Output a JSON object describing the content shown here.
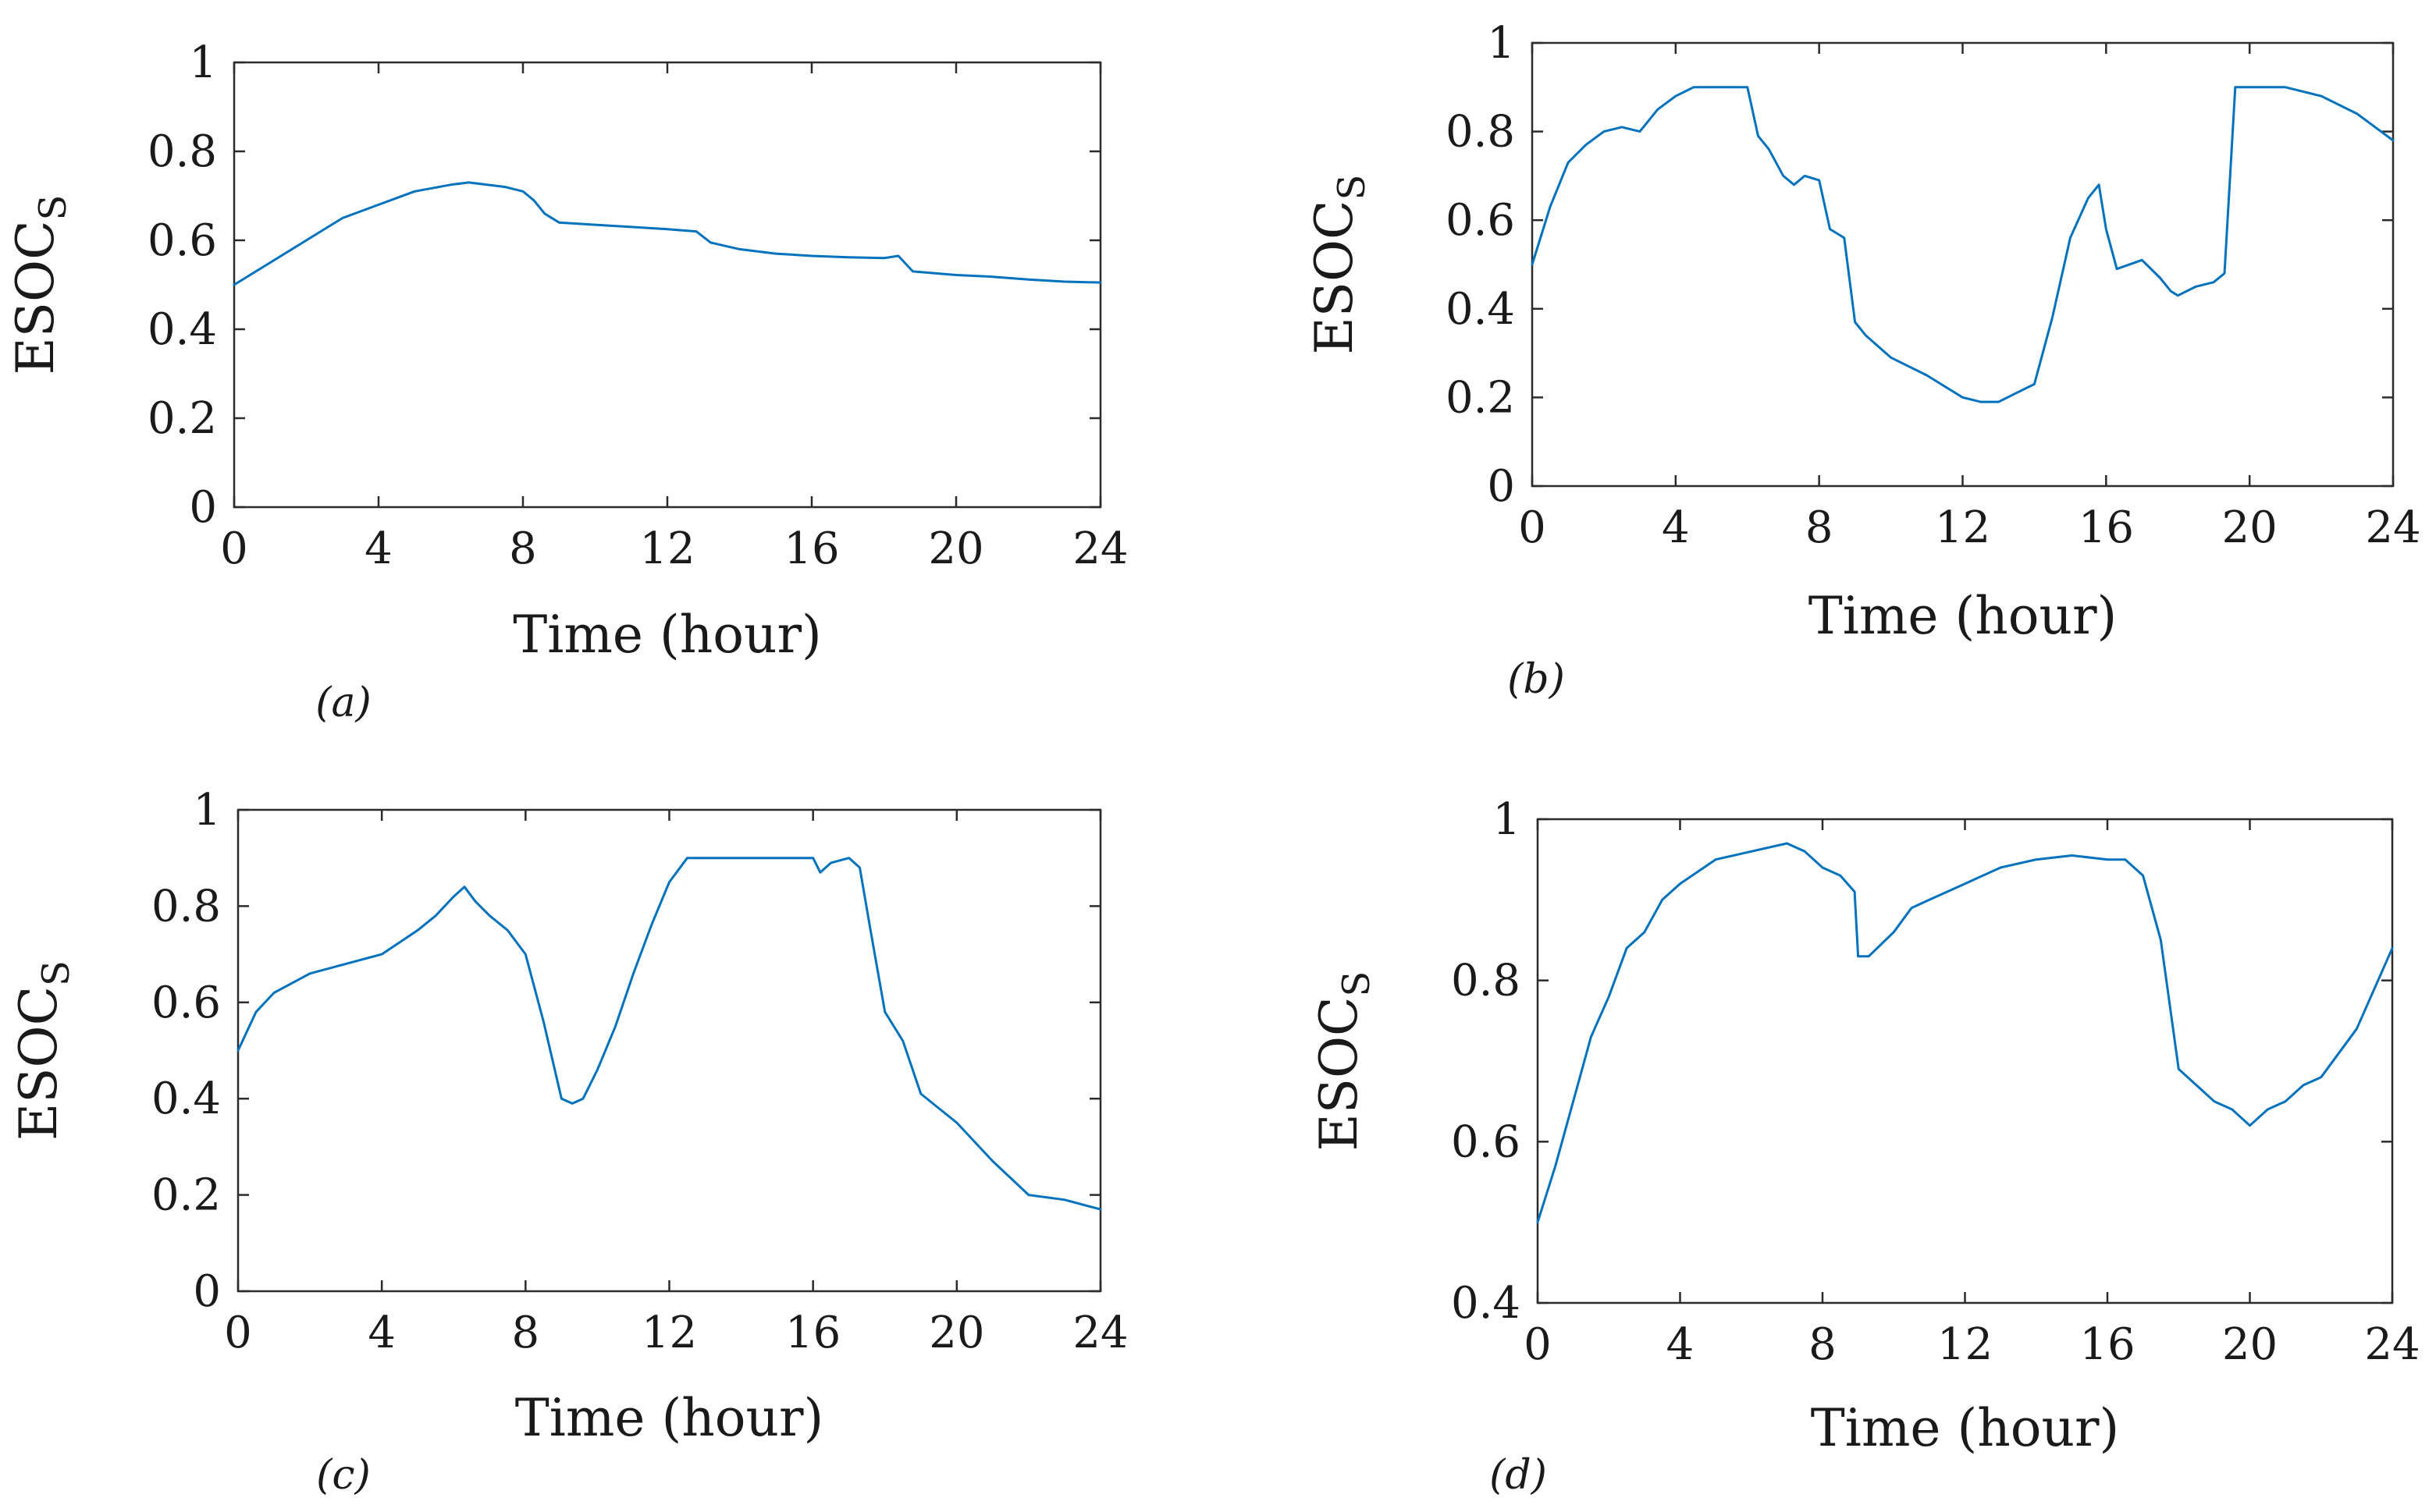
{
  "colors": {
    "series": "#0072bd",
    "axis": "#2b2b2b"
  },
  "chart_data": [
    {
      "type": "line",
      "panel_label": "(a)",
      "xlabel": "Time (hour)",
      "ylabel": "ESOC",
      "ylabel_subscript": "S",
      "xlim": [
        0,
        24
      ],
      "ylim": [
        0,
        1
      ],
      "xticks": [
        0,
        4,
        8,
        12,
        16,
        20,
        24
      ],
      "yticks": [
        0,
        0.2,
        0.4,
        0.6,
        0.8,
        1
      ],
      "xtick_labels": [
        "0",
        "4",
        "8",
        "12",
        "16",
        "20",
        "24"
      ],
      "ytick_labels": [
        "0",
        "0.2",
        "0.4",
        "0.6",
        "0.8",
        "1"
      ],
      "series": [
        {
          "name": "ESOC_S",
          "x": [
            0,
            1,
            2,
            3,
            4,
            5,
            6,
            6.5,
            7,
            7.5,
            8,
            8.3,
            8.6,
            9,
            10,
            11,
            12,
            12.8,
            13.2,
            14,
            15,
            16,
            17,
            18,
            18.4,
            18.8,
            20,
            21,
            22,
            23,
            24
          ],
          "y": [
            0.5,
            0.55,
            0.6,
            0.65,
            0.68,
            0.71,
            0.725,
            0.73,
            0.725,
            0.72,
            0.71,
            0.69,
            0.66,
            0.64,
            0.635,
            0.63,
            0.625,
            0.62,
            0.595,
            0.58,
            0.57,
            0.565,
            0.562,
            0.56,
            0.565,
            0.53,
            0.522,
            0.518,
            0.512,
            0.507,
            0.505
          ]
        }
      ]
    },
    {
      "type": "line",
      "panel_label": "(b)",
      "xlabel": "Time (hour)",
      "ylabel": "ESOC",
      "ylabel_subscript": "S",
      "xlim": [
        0,
        24
      ],
      "ylim": [
        0,
        1
      ],
      "xticks": [
        0,
        4,
        8,
        12,
        16,
        20,
        24
      ],
      "yticks": [
        0,
        0.2,
        0.4,
        0.6,
        0.8,
        1
      ],
      "xtick_labels": [
        "0",
        "4",
        "8",
        "12",
        "16",
        "20",
        "24"
      ],
      "ytick_labels": [
        "0",
        "0.2",
        "0.4",
        "0.6",
        "0.8",
        "1"
      ],
      "series": [
        {
          "name": "ESOC_S",
          "x": [
            0,
            0.5,
            1,
            1.5,
            2,
            2.5,
            3,
            3.5,
            4,
            4.5,
            5,
            6,
            6.3,
            6.6,
            7,
            7.3,
            7.6,
            8,
            8.3,
            8.7,
            9,
            9.3,
            10,
            11,
            12,
            12.5,
            13,
            13.5,
            14,
            14.5,
            15,
            15.5,
            15.8,
            16,
            16.3,
            17,
            17.5,
            17.8,
            18,
            18.5,
            19,
            19.3,
            19.6,
            20,
            21,
            22,
            23,
            24
          ],
          "y": [
            0.5,
            0.63,
            0.73,
            0.77,
            0.8,
            0.81,
            0.8,
            0.85,
            0.88,
            0.9,
            0.9,
            0.9,
            0.79,
            0.76,
            0.7,
            0.68,
            0.7,
            0.69,
            0.58,
            0.56,
            0.37,
            0.34,
            0.29,
            0.25,
            0.2,
            0.19,
            0.19,
            0.21,
            0.23,
            0.38,
            0.56,
            0.65,
            0.68,
            0.58,
            0.49,
            0.51,
            0.47,
            0.44,
            0.43,
            0.45,
            0.46,
            0.48,
            0.9,
            0.9,
            0.9,
            0.88,
            0.84,
            0.78
          ]
        }
      ]
    },
    {
      "type": "line",
      "panel_label": "(c)",
      "xlabel": "Time (hour)",
      "ylabel": "ESOC",
      "ylabel_subscript": "S",
      "xlim": [
        0,
        24
      ],
      "ylim": [
        0,
        1
      ],
      "xticks": [
        0,
        4,
        8,
        12,
        16,
        20,
        24
      ],
      "yticks": [
        0,
        0.2,
        0.4,
        0.6,
        0.8,
        1
      ],
      "xtick_labels": [
        "0",
        "4",
        "8",
        "12",
        "16",
        "20",
        "24"
      ],
      "ytick_labels": [
        "0",
        "0.2",
        "0.4",
        "0.6",
        "0.8",
        "1"
      ],
      "series": [
        {
          "name": "ESOC_S",
          "x": [
            0,
            0.5,
            1,
            2,
            3,
            4,
            5,
            5.5,
            6,
            6.3,
            6.6,
            7,
            7.5,
            8,
            8.5,
            9,
            9.3,
            9.6,
            10,
            10.5,
            11,
            11.5,
            12,
            12.5,
            13,
            14,
            15,
            16,
            16.2,
            16.5,
            17,
            17.3,
            17.6,
            18,
            18.5,
            19,
            20,
            21,
            22,
            23,
            24
          ],
          "y": [
            0.5,
            0.58,
            0.62,
            0.66,
            0.68,
            0.7,
            0.75,
            0.78,
            0.82,
            0.84,
            0.81,
            0.78,
            0.75,
            0.7,
            0.56,
            0.4,
            0.39,
            0.4,
            0.46,
            0.55,
            0.66,
            0.76,
            0.85,
            0.9,
            0.9,
            0.9,
            0.9,
            0.9,
            0.87,
            0.89,
            0.9,
            0.88,
            0.75,
            0.58,
            0.52,
            0.41,
            0.35,
            0.27,
            0.2,
            0.19,
            0.17
          ]
        }
      ]
    },
    {
      "type": "line",
      "panel_label": "(d)",
      "xlabel": "Time (hour)",
      "ylabel": "ESOC",
      "ylabel_subscript": "S",
      "xlim": [
        0,
        24
      ],
      "ylim": [
        0.4,
        1
      ],
      "xticks": [
        0,
        4,
        8,
        12,
        16,
        20,
        24
      ],
      "yticks": [
        0.4,
        0.6,
        0.8,
        1
      ],
      "xtick_labels": [
        "0",
        "4",
        "8",
        "12",
        "16",
        "20",
        "24"
      ],
      "ytick_labels": [
        "0.4",
        "0.6",
        "0.8",
        "1"
      ],
      "series": [
        {
          "name": "ESOC_S",
          "x": [
            0,
            0.5,
            1,
            1.5,
            2,
            2.5,
            3,
            3.5,
            4,
            5,
            6,
            7,
            7.5,
            8,
            8.5,
            8.9,
            9,
            9.3,
            10,
            10.5,
            11,
            12,
            13,
            14,
            15,
            16,
            16.5,
            17,
            17.5,
            18,
            18.5,
            19,
            19.5,
            20,
            20.5,
            21,
            21.5,
            22,
            22.5,
            23,
            23.5,
            24
          ],
          "y": [
            0.5,
            0.57,
            0.65,
            0.73,
            0.78,
            0.84,
            0.86,
            0.9,
            0.92,
            0.95,
            0.96,
            0.97,
            0.96,
            0.94,
            0.93,
            0.91,
            0.83,
            0.83,
            0.86,
            0.89,
            0.9,
            0.92,
            0.94,
            0.95,
            0.955,
            0.95,
            0.95,
            0.93,
            0.85,
            0.69,
            0.67,
            0.65,
            0.64,
            0.62,
            0.64,
            0.65,
            0.67,
            0.68,
            0.71,
            0.74,
            0.79,
            0.84
          ]
        }
      ]
    }
  ]
}
